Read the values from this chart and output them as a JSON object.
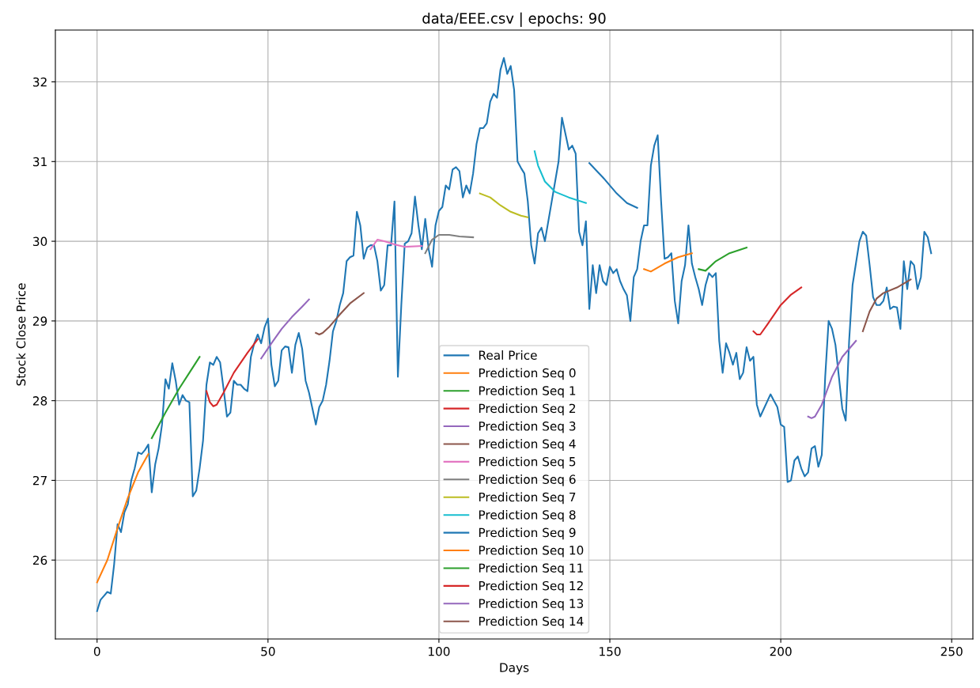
{
  "chart_data": {
    "type": "line",
    "title": "data/EEE.csv | epochs: 90",
    "xlabel": "Days",
    "ylabel": "Stock Close Price",
    "xlim": [
      -12.2,
      256.2
    ],
    "xticks": [
      0,
      50,
      100,
      150,
      200,
      250
    ],
    "ylim": [
      25.01,
      32.65
    ],
    "yticks": [
      26,
      27,
      28,
      29,
      30,
      31,
      32
    ],
    "grid": true,
    "legend": "bottom",
    "series": [
      {
        "name": "Real Price",
        "color": "#1f77b4",
        "x": [
          0,
          1,
          2,
          3,
          4,
          5,
          6,
          7,
          8,
          9,
          10,
          11,
          12,
          13,
          14,
          15,
          16,
          17,
          18,
          19,
          20,
          21,
          22,
          23,
          24,
          25,
          26,
          27,
          28,
          29,
          30,
          31,
          32,
          33,
          34,
          35,
          36,
          37,
          38,
          39,
          40,
          41,
          42,
          43,
          44,
          45,
          46,
          47,
          48,
          49,
          50,
          51,
          52,
          53,
          54,
          55,
          56,
          57,
          58,
          59,
          60,
          61,
          62,
          63,
          64,
          65,
          66,
          67,
          68,
          69,
          70,
          71,
          72,
          73,
          74,
          75,
          76,
          77,
          78,
          79,
          80,
          81,
          82,
          83,
          84,
          85,
          86,
          87,
          88,
          89,
          90,
          91,
          92,
          93,
          94,
          95,
          96,
          97,
          98,
          99,
          100,
          101,
          102,
          103,
          104,
          105,
          106,
          107,
          108,
          109,
          110,
          111,
          112,
          113,
          114,
          115,
          116,
          117,
          118,
          119,
          120,
          121,
          122,
          123,
          124,
          125,
          126,
          127,
          128,
          129,
          130,
          131,
          132,
          133,
          134,
          135,
          136,
          137,
          138,
          139,
          140,
          141,
          142,
          143,
          144,
          145,
          146,
          147,
          148,
          149,
          150,
          151,
          152,
          153,
          154,
          155,
          156,
          157,
          158,
          159,
          160,
          161,
          162,
          163,
          164,
          165,
          166,
          167,
          168,
          169,
          170,
          171,
          172,
          173,
          174,
          175,
          176,
          177,
          178,
          179,
          180,
          181,
          182,
          183,
          184,
          185,
          186,
          187,
          188,
          189,
          190,
          191,
          192,
          193,
          194,
          197,
          198,
          199,
          200,
          201,
          202,
          203,
          204,
          205,
          206,
          207,
          208,
          209,
          210,
          211,
          212,
          213,
          214,
          215,
          216,
          217,
          218,
          219,
          220,
          221,
          223,
          224,
          225,
          226,
          227,
          228,
          229,
          230,
          231,
          232,
          233,
          234,
          235,
          236,
          237,
          238,
          239,
          240,
          241,
          242,
          243,
          244
        ],
        "values": [
          25.36,
          25.5,
          25.55,
          25.6,
          25.58,
          25.95,
          26.45,
          26.35,
          26.6,
          26.7,
          27.0,
          27.15,
          27.35,
          27.33,
          27.38,
          27.45,
          26.85,
          27.2,
          27.4,
          27.7,
          28.27,
          28.15,
          28.47,
          28.25,
          27.95,
          28.07,
          28.0,
          27.98,
          26.8,
          26.87,
          27.15,
          27.5,
          28.2,
          28.48,
          28.45,
          28.55,
          28.48,
          28.15,
          27.8,
          27.85,
          28.25,
          28.2,
          28.2,
          28.15,
          28.12,
          28.55,
          28.72,
          28.83,
          28.72,
          28.92,
          29.03,
          28.45,
          28.18,
          28.25,
          28.63,
          28.68,
          28.67,
          28.35,
          28.7,
          28.85,
          28.65,
          28.25,
          28.1,
          27.9,
          27.7,
          27.92,
          28.0,
          28.2,
          28.5,
          28.87,
          29.0,
          29.2,
          29.35,
          29.75,
          29.8,
          29.82,
          30.37,
          30.2,
          29.78,
          29.92,
          29.95,
          29.95,
          29.75,
          29.38,
          29.45,
          29.95,
          29.95,
          30.5,
          28.3,
          29.2,
          29.97,
          30.0,
          30.1,
          30.56,
          30.2,
          29.9,
          30.28,
          29.9,
          29.68,
          30.2,
          30.38,
          30.43,
          30.7,
          30.65,
          30.9,
          30.93,
          30.88,
          30.55,
          30.7,
          30.6,
          30.85,
          31.22,
          31.42,
          31.42,
          31.48,
          31.75,
          31.85,
          31.8,
          32.15,
          32.3,
          32.1,
          32.2,
          31.9,
          31.0,
          30.92,
          30.85,
          30.5,
          29.95,
          29.72,
          30.1,
          30.17,
          30.0,
          30.25,
          30.5,
          30.75,
          31.0,
          31.55,
          31.35,
          31.15,
          31.2,
          31.1,
          30.12,
          29.95,
          30.25,
          29.15,
          29.7,
          29.35,
          29.7,
          29.5,
          29.45,
          29.68,
          29.6,
          29.65,
          29.5,
          29.4,
          29.32,
          29.0,
          29.55,
          29.65,
          30.0,
          30.2,
          30.2,
          30.95,
          31.2,
          31.33,
          30.5,
          29.78,
          29.8,
          29.85,
          29.25,
          28.97,
          29.5,
          29.7,
          30.2,
          29.72,
          29.55,
          29.4,
          29.2,
          29.45,
          29.6,
          29.55,
          29.6,
          28.75,
          28.35,
          28.72,
          28.6,
          28.45,
          28.6,
          28.27,
          28.35,
          28.67,
          28.5,
          28.55,
          27.95,
          27.8,
          28.08,
          28.0,
          27.92,
          27.7,
          27.67,
          26.98,
          27.0,
          27.25,
          27.3,
          27.15,
          27.05,
          27.1,
          27.4,
          27.43,
          27.17,
          27.32,
          28.3,
          29.0,
          28.9,
          28.7,
          28.3,
          27.9,
          27.75,
          28.75,
          29.45,
          30.0,
          30.12,
          30.07,
          29.7,
          29.3,
          29.2,
          29.2,
          29.25,
          29.42,
          29.15,
          29.18,
          29.17,
          28.9,
          29.75,
          29.4,
          29.75,
          29.7,
          29.4,
          29.55,
          30.12,
          30.05,
          29.85
        ]
      },
      {
        "name": "Prediction Seq 0",
        "color": "#ff7f0e",
        "x": [
          0,
          3,
          6,
          9,
          12,
          15
        ],
        "values": [
          25.72,
          26.0,
          26.4,
          26.78,
          27.1,
          27.33
        ]
      },
      {
        "name": "Prediction Seq 1",
        "color": "#2ca02c",
        "x": [
          16,
          20,
          24,
          27,
          30
        ],
        "values": [
          27.53,
          27.85,
          28.15,
          28.35,
          28.55
        ]
      },
      {
        "name": "Prediction Seq 2",
        "color": "#d62728",
        "x": [
          32,
          33,
          34,
          35,
          37,
          40,
          44,
          47
        ],
        "values": [
          28.12,
          27.98,
          27.93,
          27.95,
          28.1,
          28.35,
          28.6,
          28.77
        ]
      },
      {
        "name": "Prediction Seq 3",
        "color": "#9467bd",
        "x": [
          48,
          51,
          54,
          57,
          60,
          62
        ],
        "values": [
          28.53,
          28.72,
          28.9,
          29.05,
          29.18,
          29.27
        ]
      },
      {
        "name": "Prediction Seq 4",
        "color": "#8c564b",
        "x": [
          64,
          65,
          66,
          68,
          71,
          74,
          78
        ],
        "values": [
          28.85,
          28.83,
          28.85,
          28.93,
          29.08,
          29.22,
          29.35
        ]
      },
      {
        "name": "Prediction Seq 5",
        "color": "#e377c2",
        "x": [
          80,
          82,
          84,
          87,
          90,
          95
        ],
        "values": [
          29.9,
          30.02,
          30.0,
          29.96,
          29.93,
          29.94
        ]
      },
      {
        "name": "Prediction Seq 6",
        "color": "#7f7f7f",
        "x": [
          96,
          98,
          100,
          103,
          106,
          110
        ],
        "values": [
          29.85,
          30.02,
          30.08,
          30.08,
          30.06,
          30.05
        ]
      },
      {
        "name": "Prediction Seq 7",
        "color": "#bcbd22",
        "x": [
          112,
          115,
          118,
          121,
          124,
          126
        ],
        "values": [
          30.6,
          30.55,
          30.45,
          30.37,
          30.32,
          30.3
        ]
      },
      {
        "name": "Prediction Seq 8",
        "color": "#17becf",
        "x": [
          128,
          129,
          131,
          134,
          138,
          143
        ],
        "values": [
          31.13,
          30.95,
          30.75,
          30.62,
          30.55,
          30.48
        ]
      },
      {
        "name": "Prediction Seq 9",
        "color": "#1f77b4",
        "x": [
          144,
          148,
          152,
          155,
          158
        ],
        "values": [
          30.98,
          30.8,
          30.6,
          30.48,
          30.42
        ]
      },
      {
        "name": "Prediction Seq 10",
        "color": "#ff7f0e",
        "x": [
          160,
          162,
          166,
          170,
          174
        ],
        "values": [
          29.65,
          29.62,
          29.72,
          29.8,
          29.85
        ]
      },
      {
        "name": "Prediction Seq 11",
        "color": "#2ca02c",
        "x": [
          176,
          178,
          181,
          185,
          190
        ],
        "values": [
          29.65,
          29.63,
          29.75,
          29.85,
          29.92
        ]
      },
      {
        "name": "Prediction Seq 12",
        "color": "#d62728",
        "x": [
          192,
          193,
          194,
          196,
          200,
          203,
          206
        ],
        "values": [
          28.87,
          28.83,
          28.83,
          28.95,
          29.2,
          29.33,
          29.42
        ]
      },
      {
        "name": "Prediction Seq 13",
        "color": "#9467bd",
        "x": [
          208,
          209,
          210,
          212,
          215,
          218,
          222
        ],
        "values": [
          27.8,
          27.78,
          27.8,
          27.95,
          28.3,
          28.55,
          28.75
        ]
      },
      {
        "name": "Prediction Seq 14",
        "color": "#8c564b",
        "x": [
          224,
          226,
          228,
          230,
          234,
          238
        ],
        "values": [
          28.87,
          29.12,
          29.28,
          29.35,
          29.42,
          29.52
        ]
      }
    ]
  }
}
